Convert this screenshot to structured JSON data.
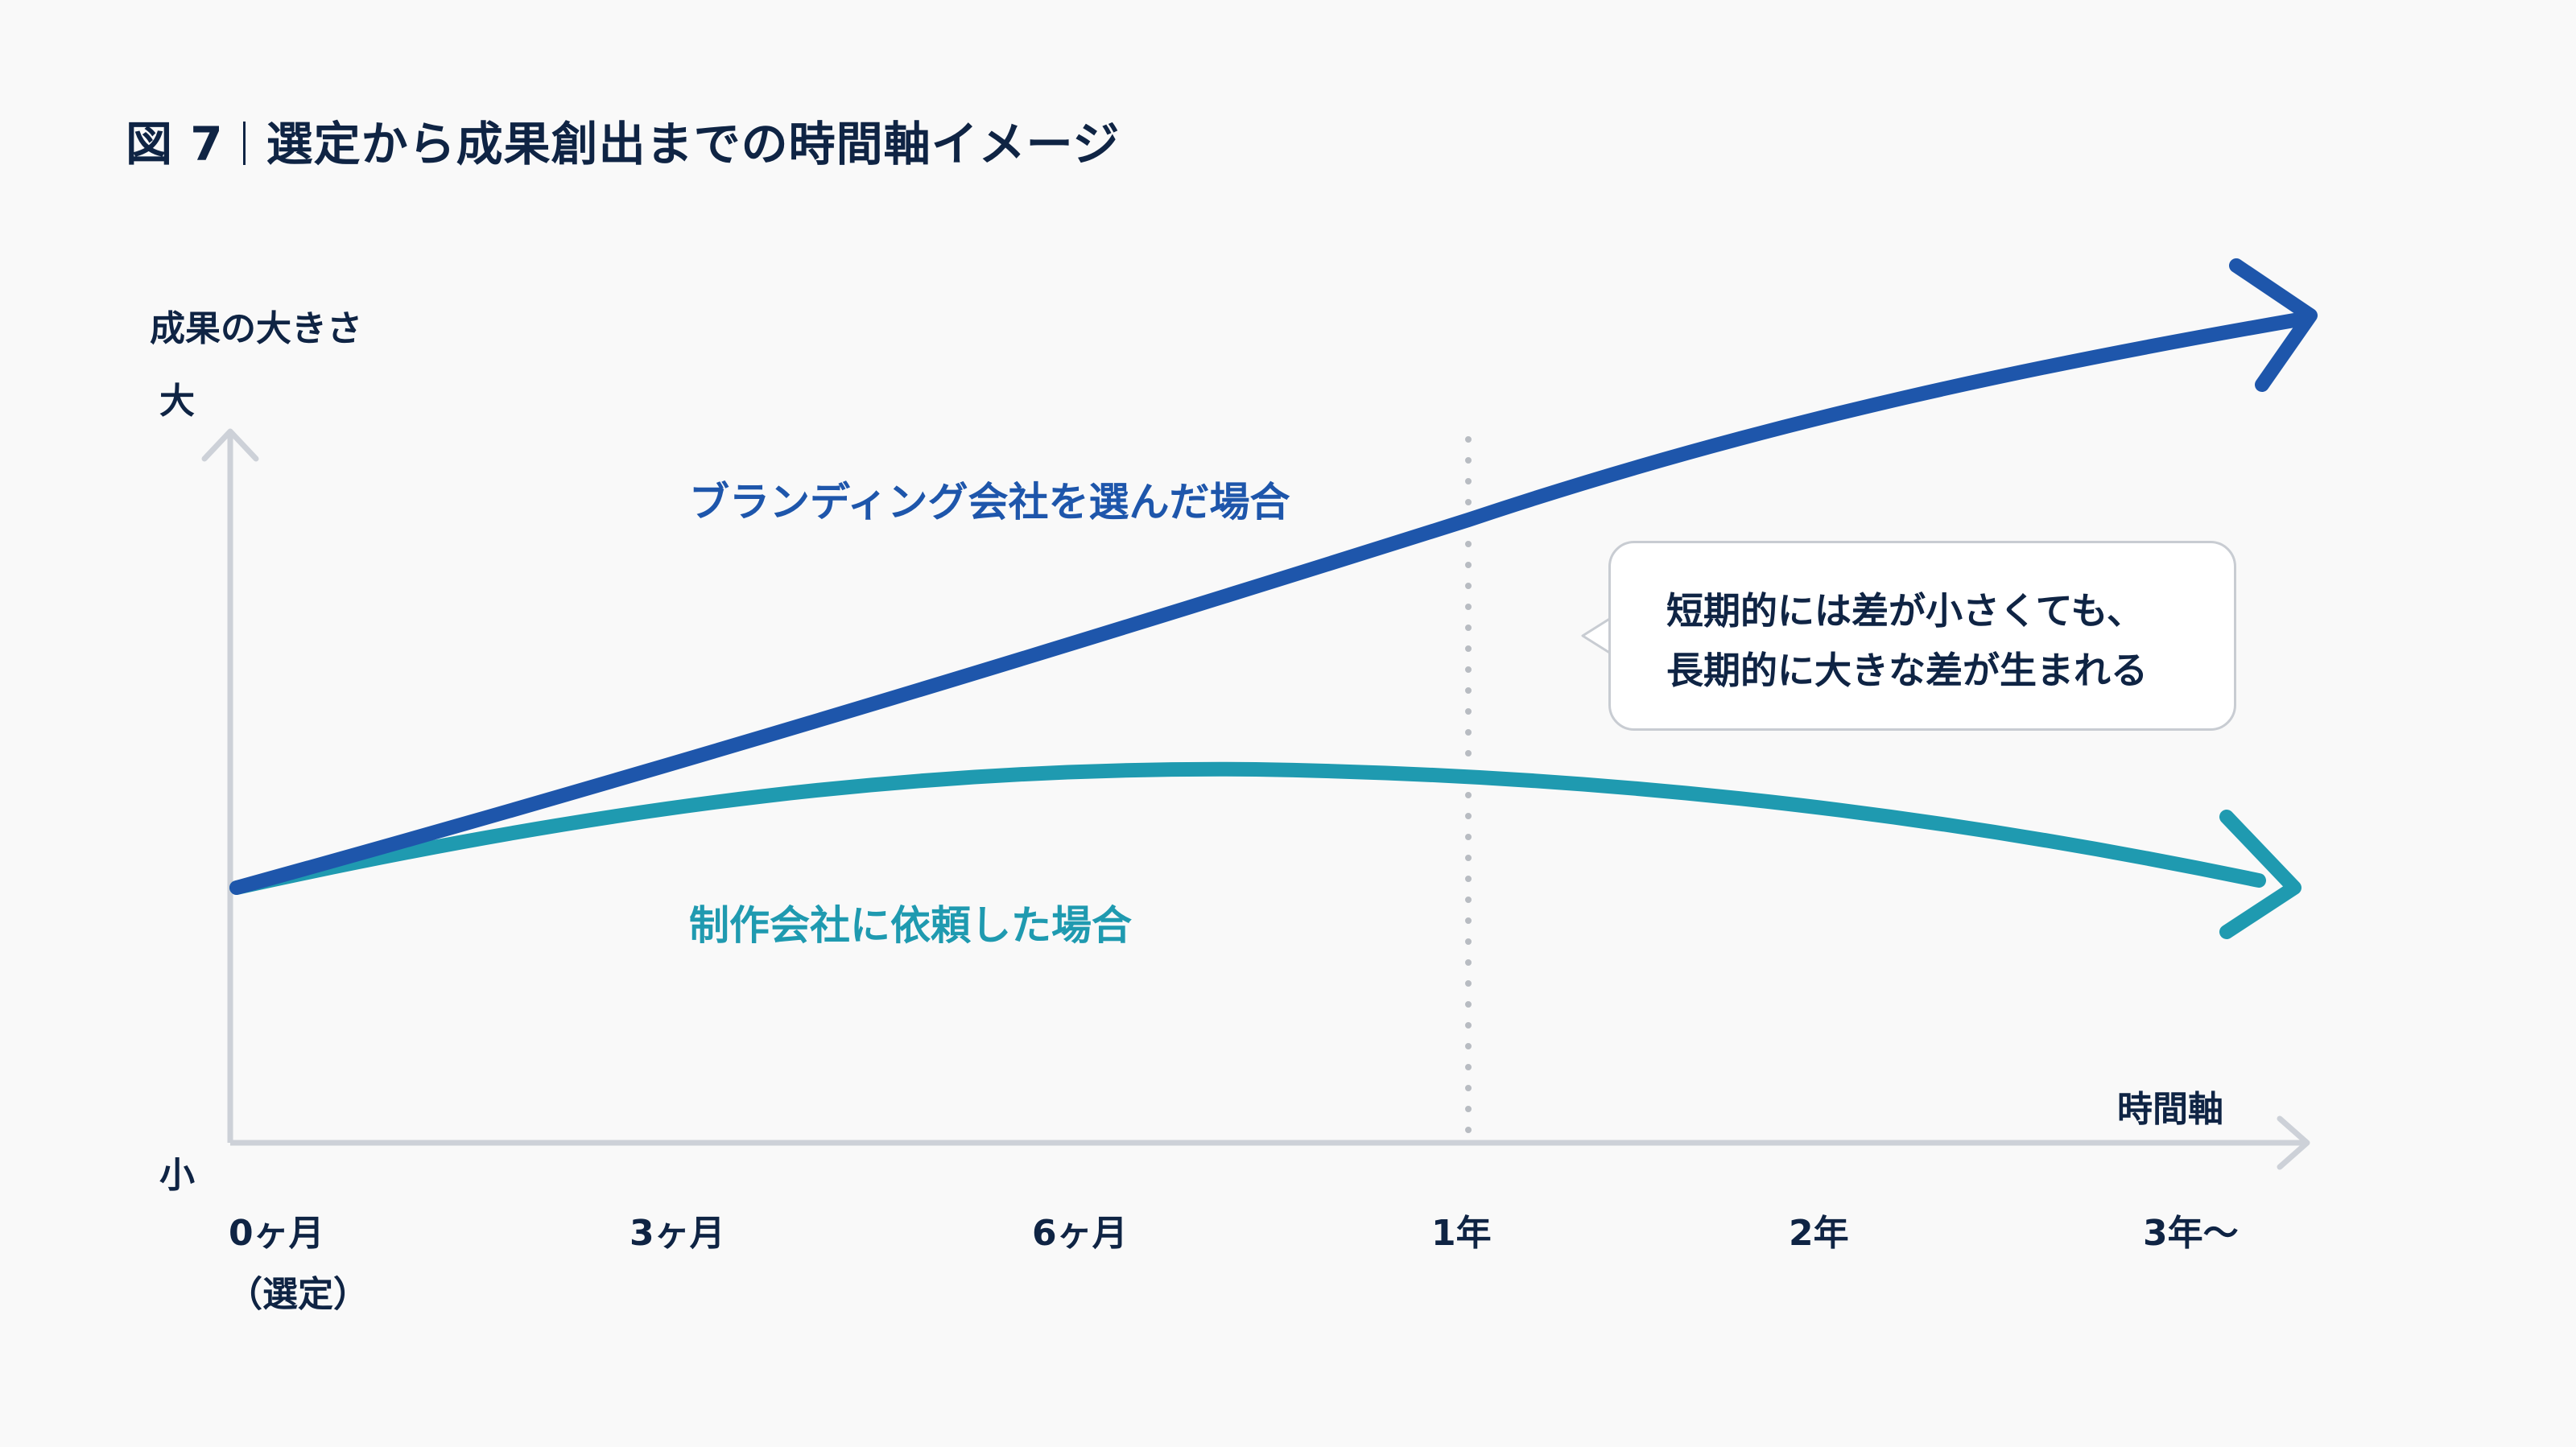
{
  "title": {
    "figure": "図 7",
    "text": "選定から成果創出までの時間軸イメージ"
  },
  "axes": {
    "y_title": "成果の大きさ",
    "y_high": "大",
    "y_low": "小",
    "x_title": "時間軸",
    "x_ticks": [
      "0ヶ月",
      "3ヶ月",
      "6ヶ月",
      "1年",
      "2年",
      "3年〜"
    ],
    "x_tick_sub": "（選定）"
  },
  "series": {
    "branding": {
      "label": "ブランディング会社を選んだ場合",
      "color": "#1e56ab"
    },
    "production": {
      "label": "制作会社に依頼した場合",
      "color": "#1f9ab0"
    }
  },
  "callout": {
    "line1": "短期的には差が小さくても、",
    "line2": "長期的に大きな差が生まれる"
  },
  "colors": {
    "axis": "#cdd1d8",
    "guide": "#b8bcc2",
    "text": "#0f2444"
  }
}
